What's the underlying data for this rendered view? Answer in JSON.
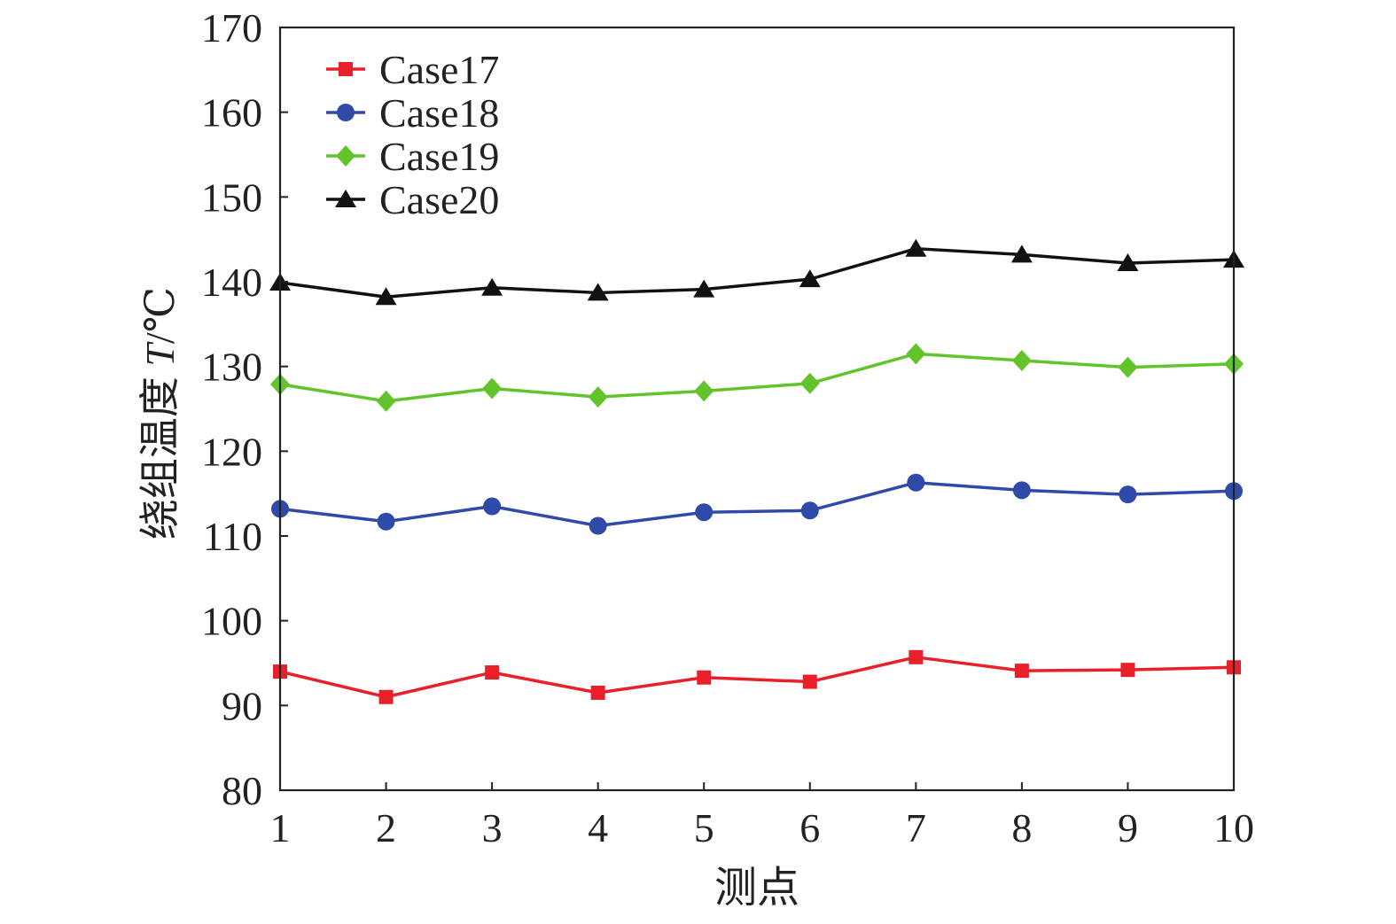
{
  "chart_data": {
    "type": "line",
    "title": "",
    "xlabel": "测点",
    "ylabel_prefix": "绕组温度 ",
    "ylabel_var": "T",
    "ylabel_unit": "/℃",
    "x": [
      1,
      2,
      3,
      4,
      5,
      6,
      7,
      8,
      9,
      10
    ],
    "x_tick_labels": [
      "1",
      "2",
      "3",
      "4",
      "5",
      "6",
      "7",
      "8",
      "9",
      "10"
    ],
    "ylim": [
      80,
      170
    ],
    "y_ticks": [
      80,
      90,
      100,
      110,
      120,
      130,
      140,
      150,
      160,
      170
    ],
    "y_tick_labels": [
      "80",
      "90",
      "100",
      "110",
      "120",
      "130",
      "140",
      "150",
      "160",
      "170"
    ],
    "grid": false,
    "legend_position": "top-left",
    "series": [
      {
        "name": "Case17",
        "color": "#e8202a",
        "marker": "square",
        "values": [
          94.0,
          91.0,
          93.9,
          91.5,
          93.3,
          92.8,
          95.7,
          94.1,
          94.2,
          94.5
        ]
      },
      {
        "name": "Case18",
        "color": "#2f4aa8",
        "marker": "circle",
        "values": [
          113.2,
          111.7,
          113.5,
          111.2,
          112.8,
          113.0,
          116.3,
          115.4,
          114.9,
          115.3
        ]
      },
      {
        "name": "Case19",
        "color": "#62c42a",
        "marker": "diamond",
        "values": [
          127.9,
          125.9,
          127.4,
          126.4,
          127.1,
          128.0,
          131.5,
          130.7,
          129.9,
          130.3
        ]
      },
      {
        "name": "Case20",
        "color": "#111111",
        "marker": "triangle",
        "values": [
          139.9,
          138.2,
          139.3,
          138.7,
          139.1,
          140.3,
          143.9,
          143.2,
          142.2,
          142.6
        ]
      }
    ]
  }
}
